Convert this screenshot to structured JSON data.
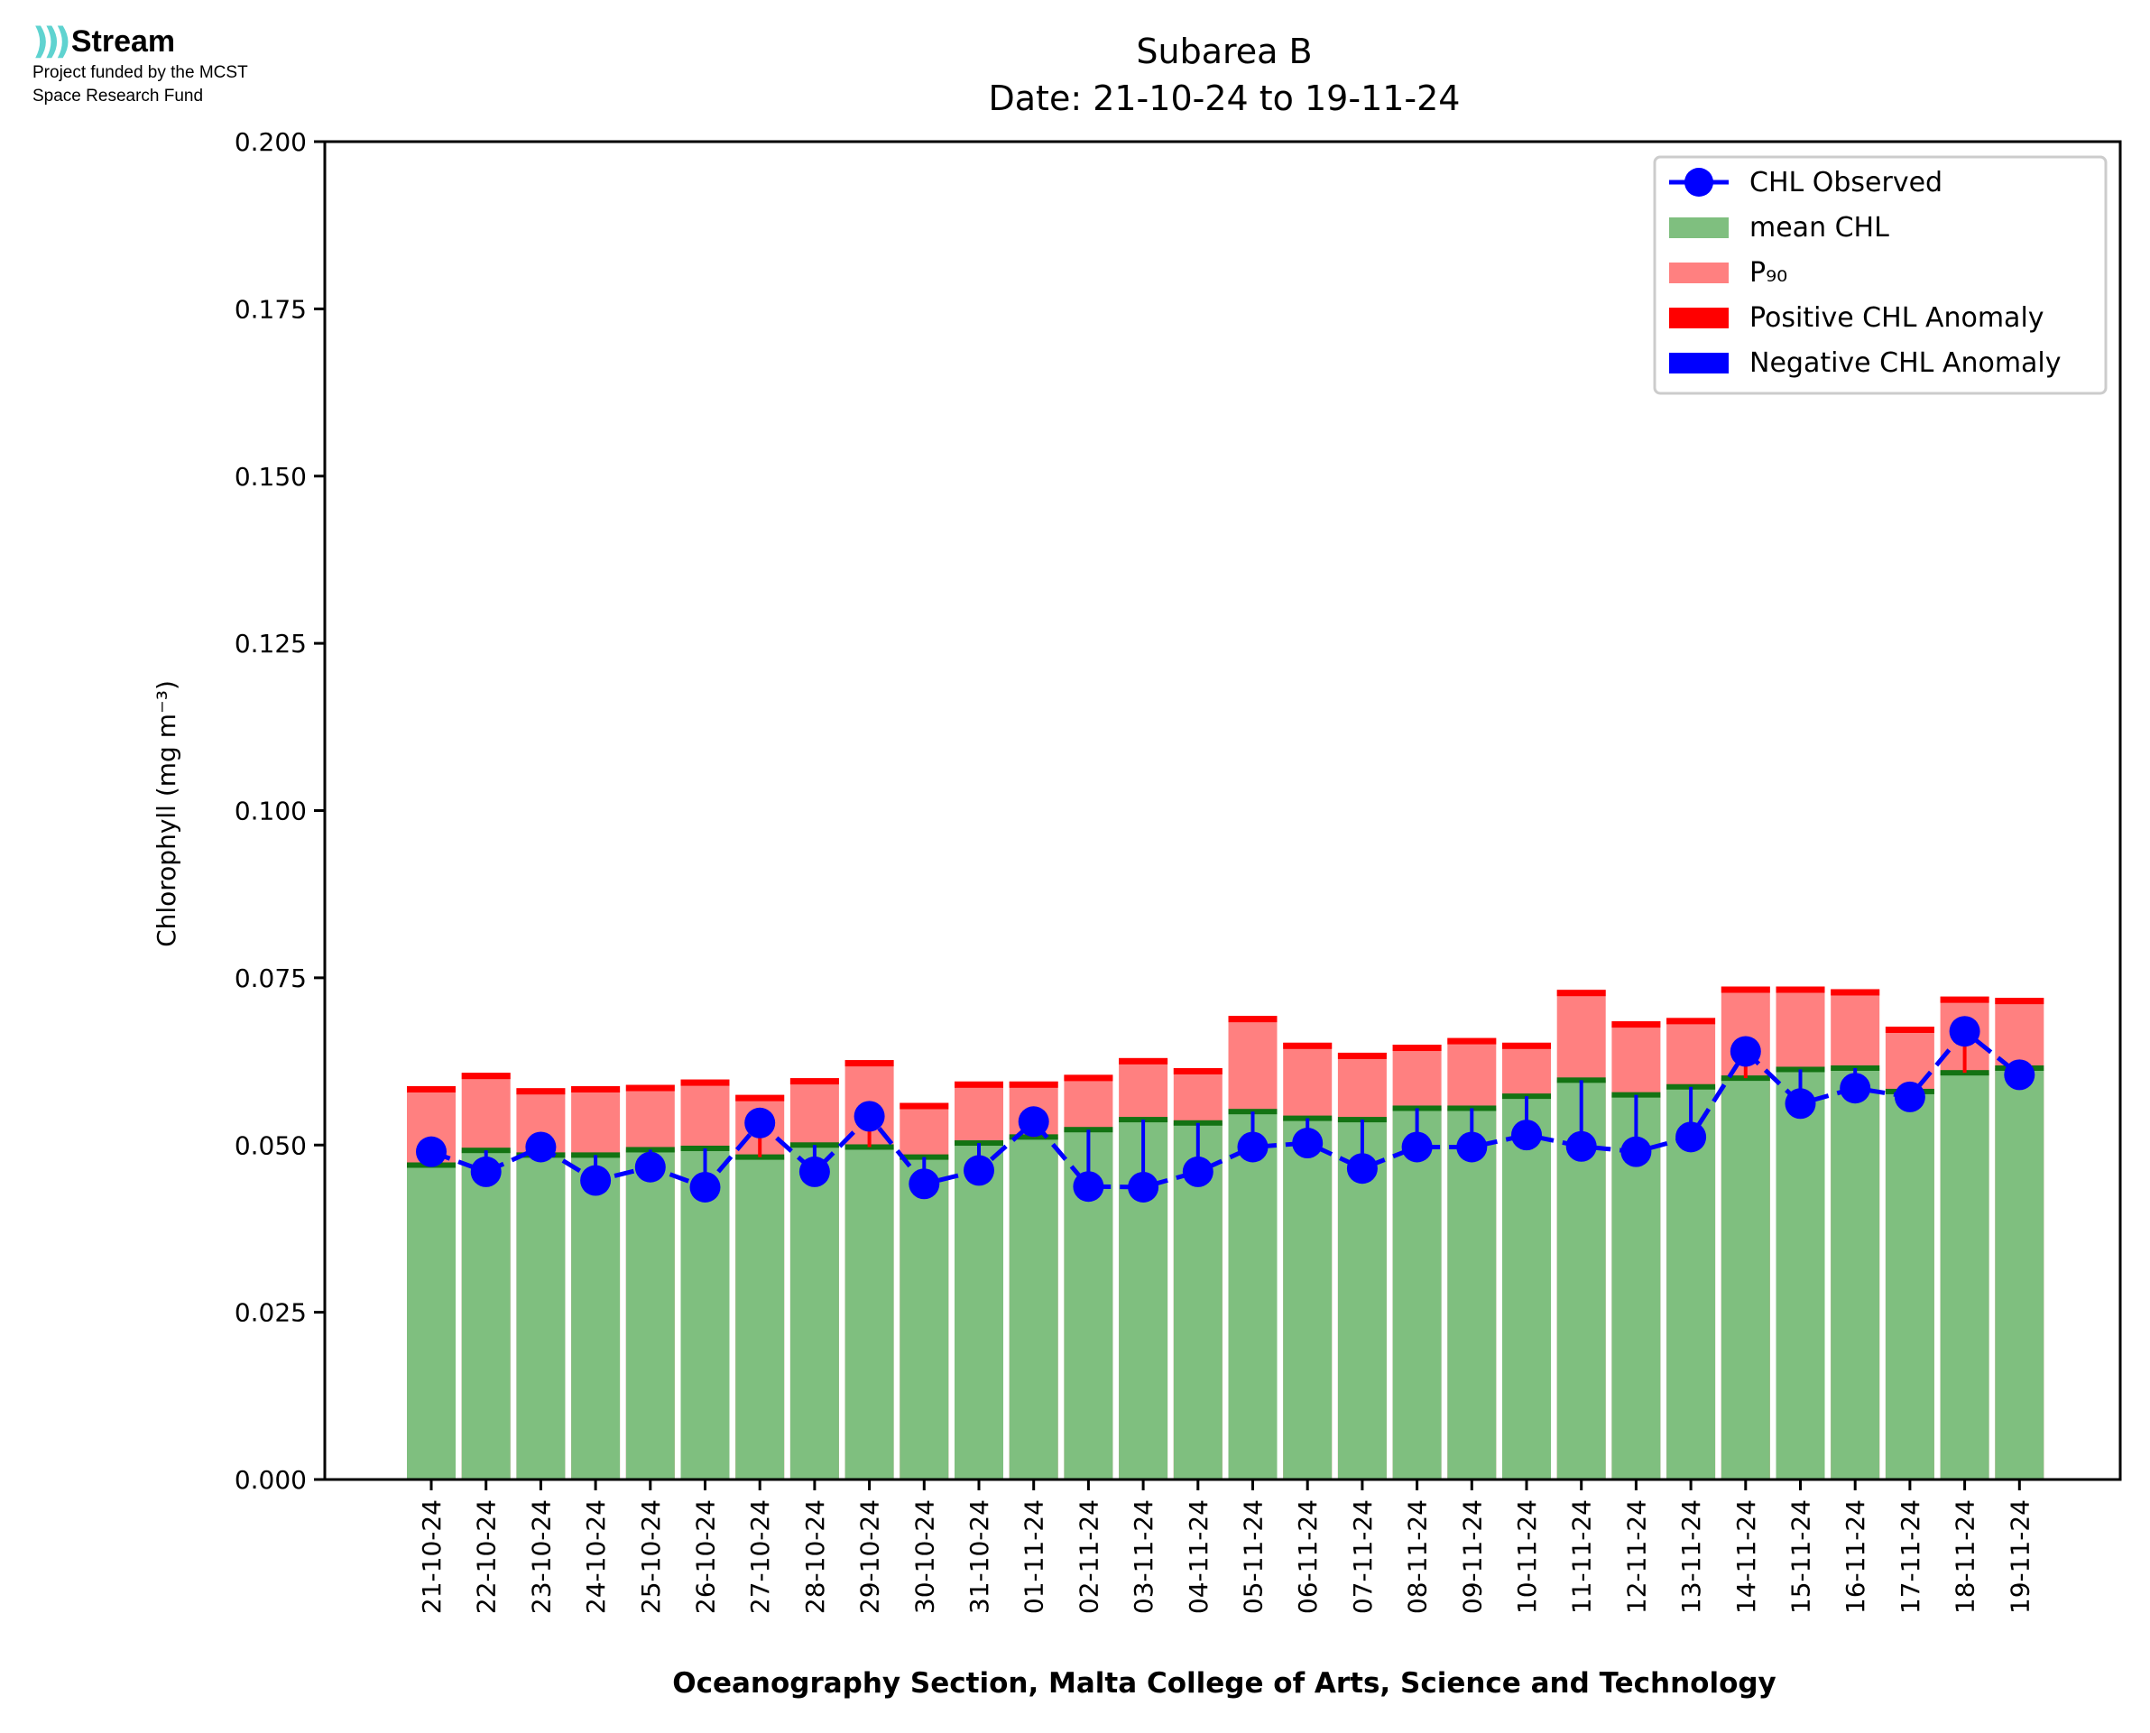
{
  "branding": {
    "logo_name": "Stream",
    "funding_line1": "Project funded by the MCST",
    "funding_line2": "Space Research Fund"
  },
  "colors": {
    "mean": "#7fbf7f",
    "mean_edge": "#137313",
    "p90": "#ff8080",
    "p90_edge": "#ff0000",
    "positive_anomaly": "#ff0000",
    "negative_anomaly": "#0000ff",
    "observed": "#0000ff"
  },
  "chart_data": {
    "type": "bar",
    "title": "Subarea B",
    "subtitle": "Date: 21-10-24 to 19-11-24",
    "xlabel": "Oceanography Section, Malta College of Arts, Science and Technology",
    "ylabel": "Chlorophyll (mg m⁻³)",
    "ylim": [
      0,
      0.2
    ],
    "yticks": [
      "0.000",
      "0.025",
      "0.050",
      "0.075",
      "0.100",
      "0.125",
      "0.150",
      "0.175",
      "0.200"
    ],
    "ytick_values": [
      0,
      0.025,
      0.05,
      0.075,
      0.1,
      0.125,
      0.15,
      0.175,
      0.2
    ],
    "legend_position": "top-right",
    "legend": [
      "CHL Observed",
      "mean CHL",
      "P₉₀",
      "Positive CHL Anomaly",
      "Negative CHL Anomaly"
    ],
    "categories": [
      "21-10-24",
      "22-10-24",
      "23-10-24",
      "24-10-24",
      "25-10-24",
      "26-10-24",
      "27-10-24",
      "28-10-24",
      "29-10-24",
      "30-10-24",
      "31-10-24",
      "01-11-24",
      "02-11-24",
      "03-11-24",
      "04-11-24",
      "05-11-24",
      "06-11-24",
      "07-11-24",
      "08-11-24",
      "09-11-24",
      "10-11-24",
      "11-11-24",
      "12-11-24",
      "13-11-24",
      "14-11-24",
      "15-11-24",
      "16-11-24",
      "17-11-24",
      "18-11-24",
      "19-11-24"
    ],
    "series": [
      {
        "name": "mean CHL",
        "values": [
          0.047,
          0.0492,
          0.0485,
          0.0485,
          0.0493,
          0.0495,
          0.0482,
          0.05,
          0.0497,
          0.0482,
          0.0503,
          0.0512,
          0.0523,
          0.0538,
          0.0533,
          0.055,
          0.054,
          0.0538,
          0.0555,
          0.0555,
          0.0573,
          0.0597,
          0.0575,
          0.0587,
          0.06,
          0.0613,
          0.0615,
          0.058,
          0.0608,
          0.0615
        ]
      },
      {
        "name": "P₉₀",
        "values": [
          0.0588,
          0.0608,
          0.0585,
          0.0588,
          0.059,
          0.0598,
          0.0575,
          0.06,
          0.0627,
          0.0563,
          0.0595,
          0.0595,
          0.0605,
          0.063,
          0.0615,
          0.0693,
          0.0653,
          0.0638,
          0.065,
          0.066,
          0.0653,
          0.0732,
          0.0685,
          0.069,
          0.0737,
          0.0737,
          0.0733,
          0.0677,
          0.0722,
          0.072
        ]
      },
      {
        "name": "CHL Observed",
        "values": [
          0.049,
          0.046,
          0.0497,
          0.0447,
          0.0467,
          0.0437,
          0.0533,
          0.046,
          0.0543,
          0.0442,
          0.0462,
          0.0535,
          0.0438,
          0.0437,
          0.046,
          0.0497,
          0.0503,
          0.0465,
          0.0497,
          0.0497,
          0.0515,
          0.0498,
          0.049,
          0.0512,
          0.064,
          0.0562,
          0.0585,
          0.0572,
          0.067,
          0.0605
        ]
      }
    ]
  }
}
